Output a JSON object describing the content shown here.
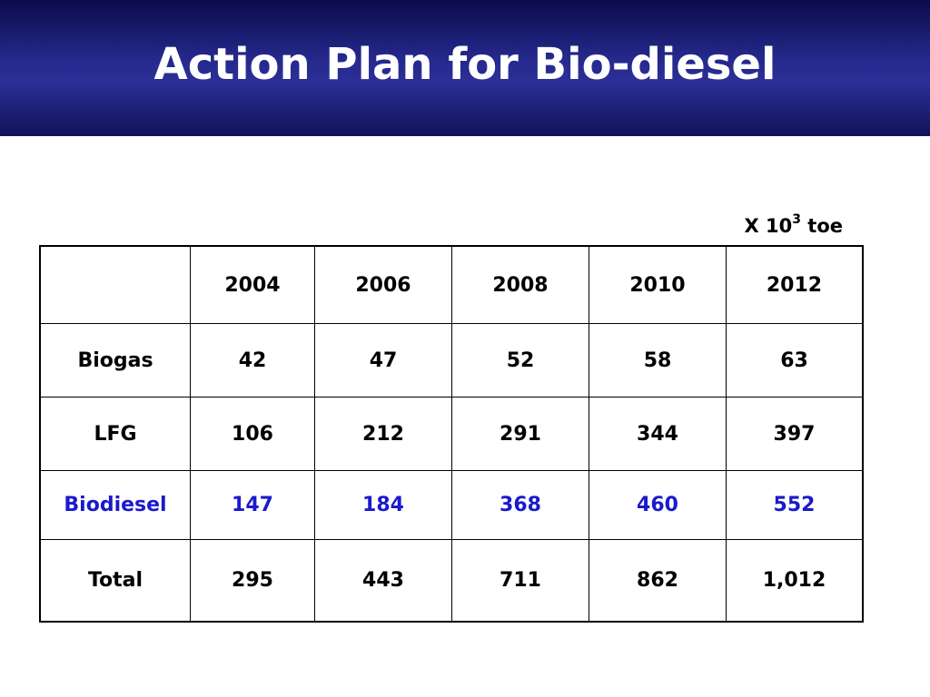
{
  "title": "Action Plan for Bio-diesel",
  "unit": {
    "prefix": "X 10",
    "exponent": "3",
    "suffix": "toe"
  },
  "table": {
    "header": [
      "",
      "2004",
      "2006",
      "2008",
      "2010",
      "2012"
    ],
    "rows": [
      {
        "label": "Biogas",
        "values": [
          "42",
          "47",
          "52",
          "58",
          "63"
        ]
      },
      {
        "label": "LFG",
        "values": [
          "106",
          "212",
          "291",
          "344",
          "397"
        ]
      },
      {
        "label": "Biodiesel",
        "values": [
          "147",
          "184",
          "368",
          "460",
          "552"
        ],
        "highlight_color": "#1a1acc"
      },
      {
        "label": "Total",
        "values": [
          "295",
          "443",
          "711",
          "862",
          "1,012"
        ]
      }
    ]
  }
}
